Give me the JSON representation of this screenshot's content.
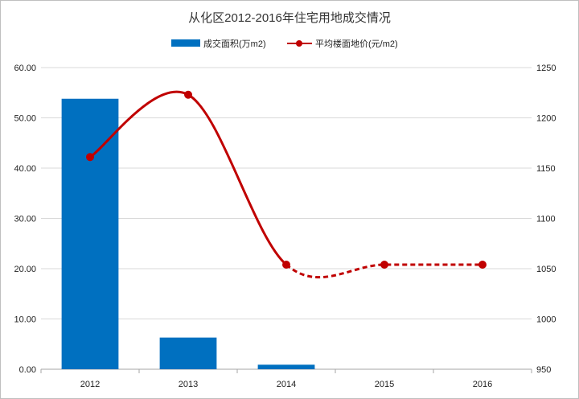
{
  "chart_data": {
    "type": "bar+line",
    "title": "从化区2012-2016年住宅用地成交情况",
    "categories": [
      "2012",
      "2013",
      "2014",
      "2015",
      "2016"
    ],
    "series": [
      {
        "name": "成交面积(万m2)",
        "type": "bar",
        "axis": "left",
        "color": "#0070C0",
        "values": [
          53.8,
          6.3,
          0.9,
          0,
          0
        ]
      },
      {
        "name": "平均楼面地价(元/m2)",
        "type": "line",
        "axis": "right",
        "color": "#C00000",
        "values": [
          1161,
          1223,
          1054,
          1054,
          1054
        ],
        "dashed_from_index": 2
      }
    ],
    "left_axis": {
      "ylim": [
        0,
        60
      ],
      "ticks": [
        "0.00",
        "10.00",
        "20.00",
        "30.00",
        "40.00",
        "50.00",
        "60.00"
      ]
    },
    "right_axis": {
      "ylim": [
        950,
        1250
      ],
      "ticks": [
        "950",
        "1000",
        "1050",
        "1100",
        "1150",
        "1200",
        "1250"
      ]
    },
    "grid": true,
    "legend_position": "top"
  }
}
